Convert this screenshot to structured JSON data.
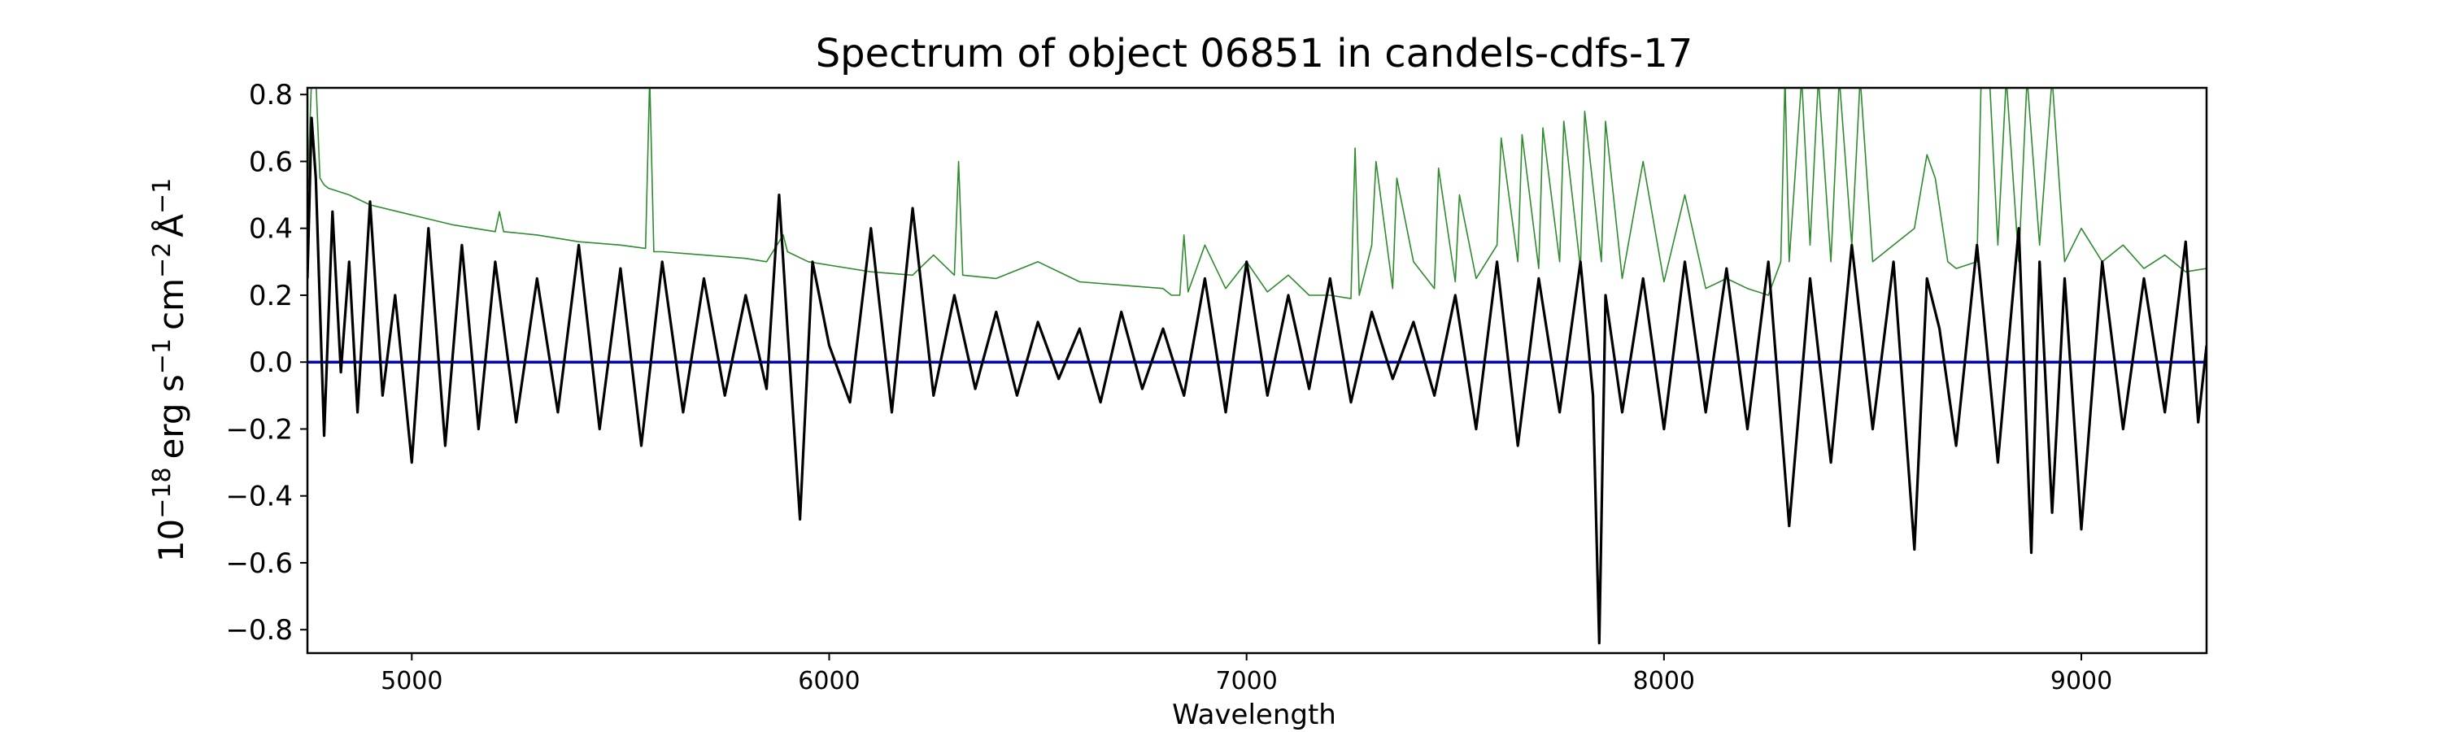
{
  "chart_data": {
    "type": "line",
    "title": "Spectrum of object 06851 in candels-cdfs-17",
    "xlabel": "Wavelength",
    "ylabel": {
      "prefix": "10",
      "exp": "−18",
      "unit": "erg s",
      "s_exp": "−1",
      "cm": "cm",
      "cm_exp": "−2",
      "ang": "Å",
      "ang_exp": "−1"
    },
    "xlim": [
      4750,
      9300
    ],
    "ylim": [
      -0.87,
      0.82
    ],
    "xticks": [
      5000,
      6000,
      7000,
      8000,
      9000
    ],
    "xtick_labels": [
      "5000",
      "6000",
      "7000",
      "8000",
      "9000"
    ],
    "yticks": [
      -0.8,
      -0.6,
      -0.4,
      -0.2,
      0.0,
      0.2,
      0.4,
      0.6,
      0.8
    ],
    "ytick_labels": [
      "−0.8",
      "−0.6",
      "−0.4",
      "−0.2",
      "0.0",
      "0.2",
      "0.4",
      "0.6",
      "0.8"
    ],
    "grid": false,
    "legend": "none",
    "series": [
      {
        "role": "flux",
        "color": "#000000",
        "x": [
          4750,
          4760,
          4770,
          4790,
          4810,
          4830,
          4850,
          4870,
          4900,
          4930,
          4960,
          5000,
          5040,
          5080,
          5120,
          5160,
          5200,
          5250,
          5300,
          5350,
          5400,
          5450,
          5500,
          5550,
          5600,
          5650,
          5700,
          5750,
          5800,
          5850,
          5880,
          5900,
          5930,
          5960,
          6000,
          6050,
          6100,
          6150,
          6200,
          6250,
          6300,
          6350,
          6400,
          6450,
          6500,
          6550,
          6600,
          6650,
          6700,
          6750,
          6800,
          6850,
          6900,
          6950,
          7000,
          7050,
          7100,
          7150,
          7200,
          7250,
          7300,
          7350,
          7400,
          7450,
          7500,
          7550,
          7600,
          7650,
          7700,
          7750,
          7800,
          7830,
          7845,
          7860,
          7900,
          7950,
          8000,
          8050,
          8100,
          8150,
          8200,
          8250,
          8300,
          8350,
          8400,
          8450,
          8500,
          8550,
          8600,
          8630,
          8660,
          8700,
          8750,
          8800,
          8850,
          8880,
          8900,
          8930,
          8960,
          9000,
          9050,
          9100,
          9150,
          9200,
          9250,
          9280,
          9300
        ],
        "y": [
          0.25,
          0.73,
          0.55,
          -0.22,
          0.45,
          -0.03,
          0.3,
          -0.15,
          0.48,
          -0.1,
          0.2,
          -0.3,
          0.4,
          -0.25,
          0.35,
          -0.2,
          0.3,
          -0.18,
          0.25,
          -0.15,
          0.35,
          -0.2,
          0.28,
          -0.25,
          0.3,
          -0.15,
          0.25,
          -0.1,
          0.2,
          -0.08,
          0.5,
          0.1,
          -0.47,
          0.3,
          0.05,
          -0.12,
          0.4,
          -0.15,
          0.46,
          -0.1,
          0.2,
          -0.08,
          0.15,
          -0.1,
          0.12,
          -0.05,
          0.1,
          -0.12,
          0.15,
          -0.08,
          0.1,
          -0.1,
          0.25,
          -0.15,
          0.3,
          -0.1,
          0.2,
          -0.08,
          0.25,
          -0.12,
          0.15,
          -0.05,
          0.12,
          -0.1,
          0.2,
          -0.2,
          0.3,
          -0.25,
          0.25,
          -0.15,
          0.3,
          -0.1,
          -0.84,
          0.2,
          -0.15,
          0.25,
          -0.2,
          0.3,
          -0.15,
          0.28,
          -0.2,
          0.3,
          -0.49,
          0.25,
          -0.3,
          0.35,
          -0.2,
          0.3,
          -0.56,
          0.25,
          0.1,
          -0.25,
          0.35,
          -0.3,
          0.4,
          -0.57,
          0.3,
          -0.45,
          0.25,
          -0.5,
          0.3,
          -0.2,
          0.25,
          -0.15,
          0.36,
          -0.18,
          0.05
        ]
      },
      {
        "role": "noise",
        "color": "#2e8b2e",
        "x": [
          4750,
          4760,
          4770,
          4780,
          4790,
          4800,
          4850,
          4900,
          5000,
          5100,
          5200,
          5210,
          5220,
          5300,
          5400,
          5500,
          5560,
          5570,
          5580,
          5600,
          5700,
          5800,
          5850,
          5890,
          5900,
          5950,
          6000,
          6100,
          6200,
          6250,
          6300,
          6310,
          6320,
          6400,
          6500,
          6600,
          6700,
          6800,
          6820,
          6840,
          6850,
          6860,
          6900,
          6950,
          7000,
          7050,
          7100,
          7150,
          7200,
          7250,
          7260,
          7270,
          7300,
          7310,
          7350,
          7360,
          7400,
          7450,
          7460,
          7500,
          7510,
          7550,
          7600,
          7610,
          7650,
          7660,
          7700,
          7710,
          7750,
          7760,
          7800,
          7810,
          7850,
          7860,
          7900,
          7950,
          8000,
          8050,
          8100,
          8150,
          8200,
          8250,
          8280,
          8290,
          8300,
          8330,
          8350,
          8370,
          8400,
          8420,
          8450,
          8470,
          8500,
          8550,
          8600,
          8630,
          8650,
          8680,
          8700,
          8750,
          8760,
          8780,
          8800,
          8820,
          8850,
          8870,
          8900,
          8930,
          8960,
          9000,
          9050,
          9100,
          9150,
          9200,
          9250,
          9300
        ],
        "y": [
          0.5,
          0.85,
          0.85,
          0.55,
          0.53,
          0.52,
          0.5,
          0.47,
          0.44,
          0.41,
          0.39,
          0.45,
          0.39,
          0.38,
          0.36,
          0.35,
          0.34,
          0.85,
          0.33,
          0.33,
          0.32,
          0.31,
          0.3,
          0.38,
          0.33,
          0.3,
          0.29,
          0.27,
          0.26,
          0.32,
          0.26,
          0.6,
          0.26,
          0.25,
          0.3,
          0.24,
          0.23,
          0.22,
          0.2,
          0.2,
          0.38,
          0.21,
          0.35,
          0.22,
          0.3,
          0.21,
          0.26,
          0.2,
          0.2,
          0.19,
          0.64,
          0.2,
          0.35,
          0.6,
          0.22,
          0.55,
          0.3,
          0.22,
          0.58,
          0.24,
          0.5,
          0.25,
          0.35,
          0.67,
          0.3,
          0.68,
          0.28,
          0.7,
          0.3,
          0.72,
          0.28,
          0.75,
          0.3,
          0.72,
          0.25,
          0.6,
          0.24,
          0.5,
          0.22,
          0.25,
          0.22,
          0.2,
          0.3,
          0.85,
          0.3,
          0.85,
          0.35,
          0.85,
          0.3,
          0.85,
          0.35,
          0.85,
          0.3,
          0.35,
          0.4,
          0.62,
          0.55,
          0.3,
          0.28,
          0.3,
          0.85,
          0.85,
          0.35,
          0.85,
          0.3,
          0.85,
          0.35,
          0.85,
          0.3,
          0.4,
          0.3,
          0.35,
          0.28,
          0.32,
          0.27,
          0.28
        ]
      },
      {
        "role": "zero-level",
        "color": "#0000cc",
        "x": [
          4750,
          9300
        ],
        "y": [
          0.0,
          0.0
        ]
      }
    ]
  }
}
